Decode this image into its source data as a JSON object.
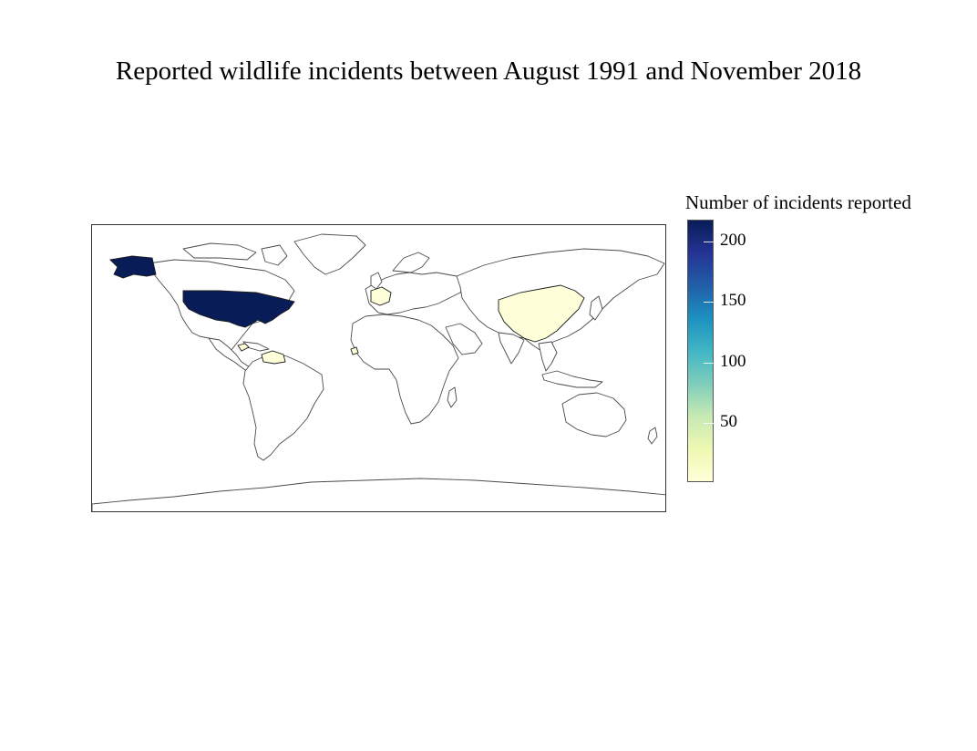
{
  "title": "Reported wildlife incidents between August 1991 and November 2018",
  "legend": {
    "title": "Number of incidents reported",
    "ticks": [
      200,
      150,
      100,
      50
    ],
    "min": 1,
    "max": 218,
    "palette": [
      "#ffffd9",
      "#edf8b1",
      "#c7e9b4",
      "#7fcdbb",
      "#41b6c4",
      "#1d91c0",
      "#225ea8",
      "#253494",
      "#081d58"
    ]
  },
  "chart_data": {
    "type": "choropleth",
    "title": "Reported wildlife incidents between August 1991 and November 2018",
    "legend_title": "Number of incidents reported",
    "value_range": [
      1,
      218
    ],
    "legend_ticks": [
      200,
      150,
      100,
      50
    ],
    "legend_placement": "right",
    "regions": [
      {
        "name": "United States",
        "value": 218
      },
      {
        "name": "China",
        "value": 2
      },
      {
        "name": "France",
        "value": 2
      },
      {
        "name": "Venezuela",
        "value": 1
      },
      {
        "name": "Honduras",
        "value": 1
      },
      {
        "name": "Sierra Leone",
        "value": 1
      }
    ]
  }
}
